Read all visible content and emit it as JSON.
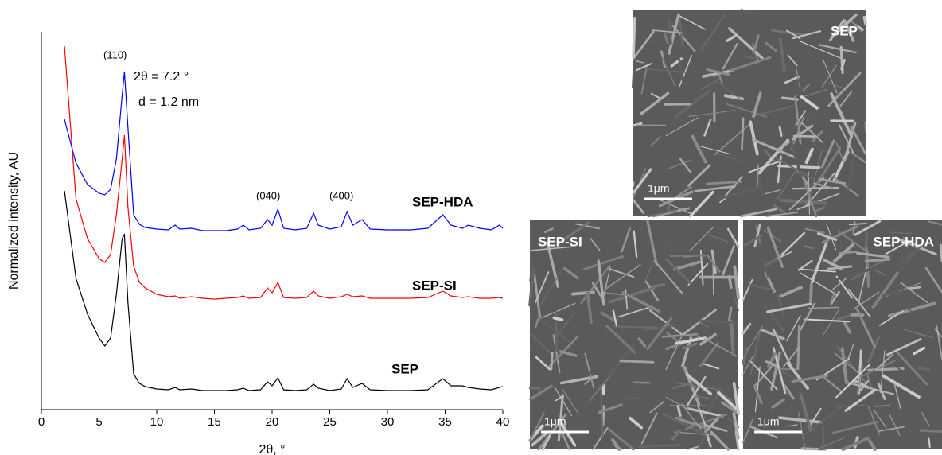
{
  "chart_data": {
    "type": "line",
    "x_label": "2θ, °",
    "y_label": "Normalized intensity, AU",
    "annotations": [
      "(110)",
      "2θ = 7.2 °",
      "d = 1.2 nm",
      "(040)",
      "(400)"
    ],
    "x": [
      2,
      3,
      4,
      5,
      5.5,
      6,
      6.5,
      7,
      7.2,
      7.5,
      8,
      8.5,
      9,
      10,
      11,
      11.6,
      12,
      13,
      14,
      15,
      16,
      17,
      17.5,
      18,
      19,
      19.6,
      20,
      20.5,
      21,
      22,
      23,
      23.6,
      24,
      25,
      26,
      26.5,
      27,
      27.8,
      28.5,
      30,
      32,
      33.5,
      34.8,
      35.5,
      36.5,
      37,
      38,
      39,
      39.7,
      40
    ],
    "xlim": [
      0,
      40
    ],
    "xticks": [
      0,
      5,
      10,
      15,
      20,
      25,
      30,
      35,
      40
    ],
    "ylim": [
      0,
      95
    ],
    "series": [
      {
        "name": "SEP-HDA",
        "color": "#0000ff",
        "values": [
          73,
          62,
          56.6,
          54.4,
          54,
          55.4,
          63,
          79,
          85,
          71,
          49,
          46.6,
          45.8,
          45.4,
          45.2,
          46.4,
          45.4,
          45.6,
          45,
          45,
          45,
          45.4,
          46.4,
          45.2,
          45.6,
          47.8,
          46.4,
          50.4,
          45.6,
          45.2,
          45.6,
          49.4,
          46.4,
          45.4,
          46,
          49.8,
          46.4,
          47.8,
          45.4,
          45.2,
          45.2,
          45.6,
          49,
          46.4,
          45.6,
          46.4,
          45.6,
          45.2,
          46.4,
          45.6
        ]
      },
      {
        "name": "SEP-SI",
        "color": "#ff0000",
        "values": [
          91.4,
          53,
          43,
          38,
          37,
          39,
          49,
          63,
          69,
          51,
          36,
          32,
          30.6,
          29,
          28.4,
          28.6,
          28,
          28.4,
          28,
          27.8,
          28,
          28.2,
          28.6,
          28,
          28.2,
          30.6,
          29.4,
          32,
          28.2,
          28,
          28.2,
          29.8,
          28.6,
          28,
          28.4,
          29,
          28.4,
          28.6,
          28,
          28,
          28,
          28.2,
          29.8,
          28.6,
          28.2,
          28.4,
          28,
          28,
          28.2,
          28
        ]
      },
      {
        "name": "SEP",
        "color": "#000000",
        "values": [
          55,
          33,
          24,
          18,
          16,
          18,
          29,
          43,
          44,
          27,
          9,
          6.6,
          5.8,
          5.2,
          5,
          5.6,
          5,
          5.2,
          4.8,
          4.8,
          4.8,
          5,
          5.4,
          4.8,
          5,
          7,
          6,
          8,
          5,
          4.8,
          5,
          6.4,
          5.4,
          4.8,
          5.2,
          7.8,
          5.6,
          6.6,
          5,
          4.8,
          4.8,
          5,
          7.8,
          6,
          6,
          5.6,
          5.2,
          5,
          5.6,
          5.8
        ]
      }
    ]
  },
  "micrographs": [
    {
      "label": "SEP",
      "scale_bar": "1μm"
    },
    {
      "label": "SEP-SI",
      "scale_bar": "1μm"
    },
    {
      "label": "SEP-HDA",
      "scale_bar": "1μm"
    }
  ]
}
